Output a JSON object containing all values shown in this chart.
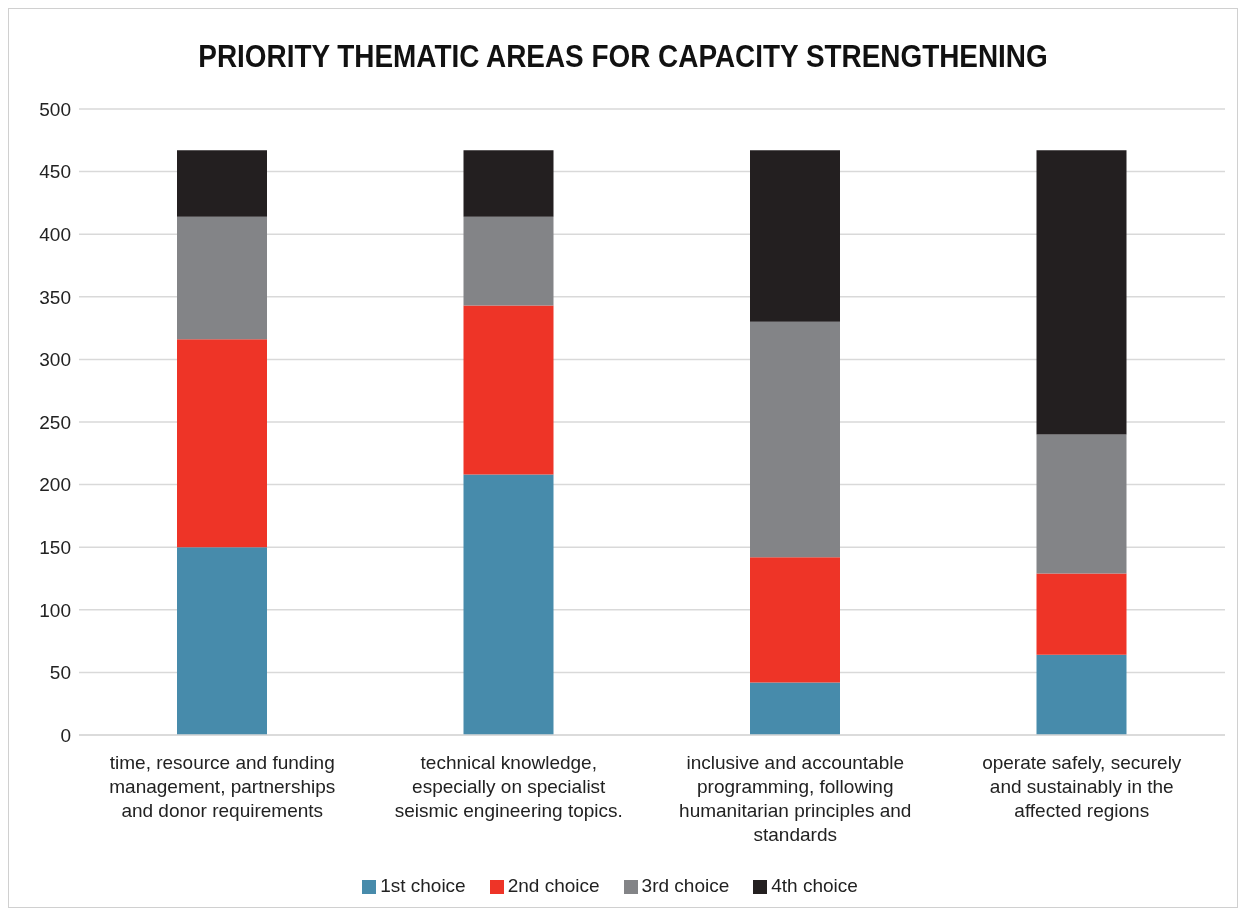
{
  "chart_data": {
    "type": "bar",
    "title": "PRIORITY THEMATIC AREAS FOR CAPACITY STRENGTHENING",
    "stacked": true,
    "grid": "y",
    "legend": "bottom",
    "categories": [
      "time, resource and funding management, partnerships and donor requirements",
      "technical knowledge, especially on specialist seismic engineering topics.",
      "inclusive and accountable programming, following humanitarian principles and standards",
      "operate safely, securely and sustainably in the affected regions"
    ],
    "ylim": [
      0,
      500
    ],
    "yticks": [
      0,
      50,
      100,
      150,
      200,
      250,
      300,
      350,
      400,
      450,
      500
    ],
    "series": [
      {
        "name": "1st choice",
        "color": "#478bab",
        "values": [
          150,
          208,
          42,
          64
        ]
      },
      {
        "name": "2nd choice",
        "color": "#ee3427",
        "values": [
          166,
          135,
          100,
          65
        ]
      },
      {
        "name": "3rd choice",
        "color": "#838487",
        "values": [
          98,
          71,
          188,
          111
        ]
      },
      {
        "name": "4th choice",
        "color": "#231f20",
        "values": [
          53,
          53,
          137,
          227
        ]
      }
    ]
  }
}
